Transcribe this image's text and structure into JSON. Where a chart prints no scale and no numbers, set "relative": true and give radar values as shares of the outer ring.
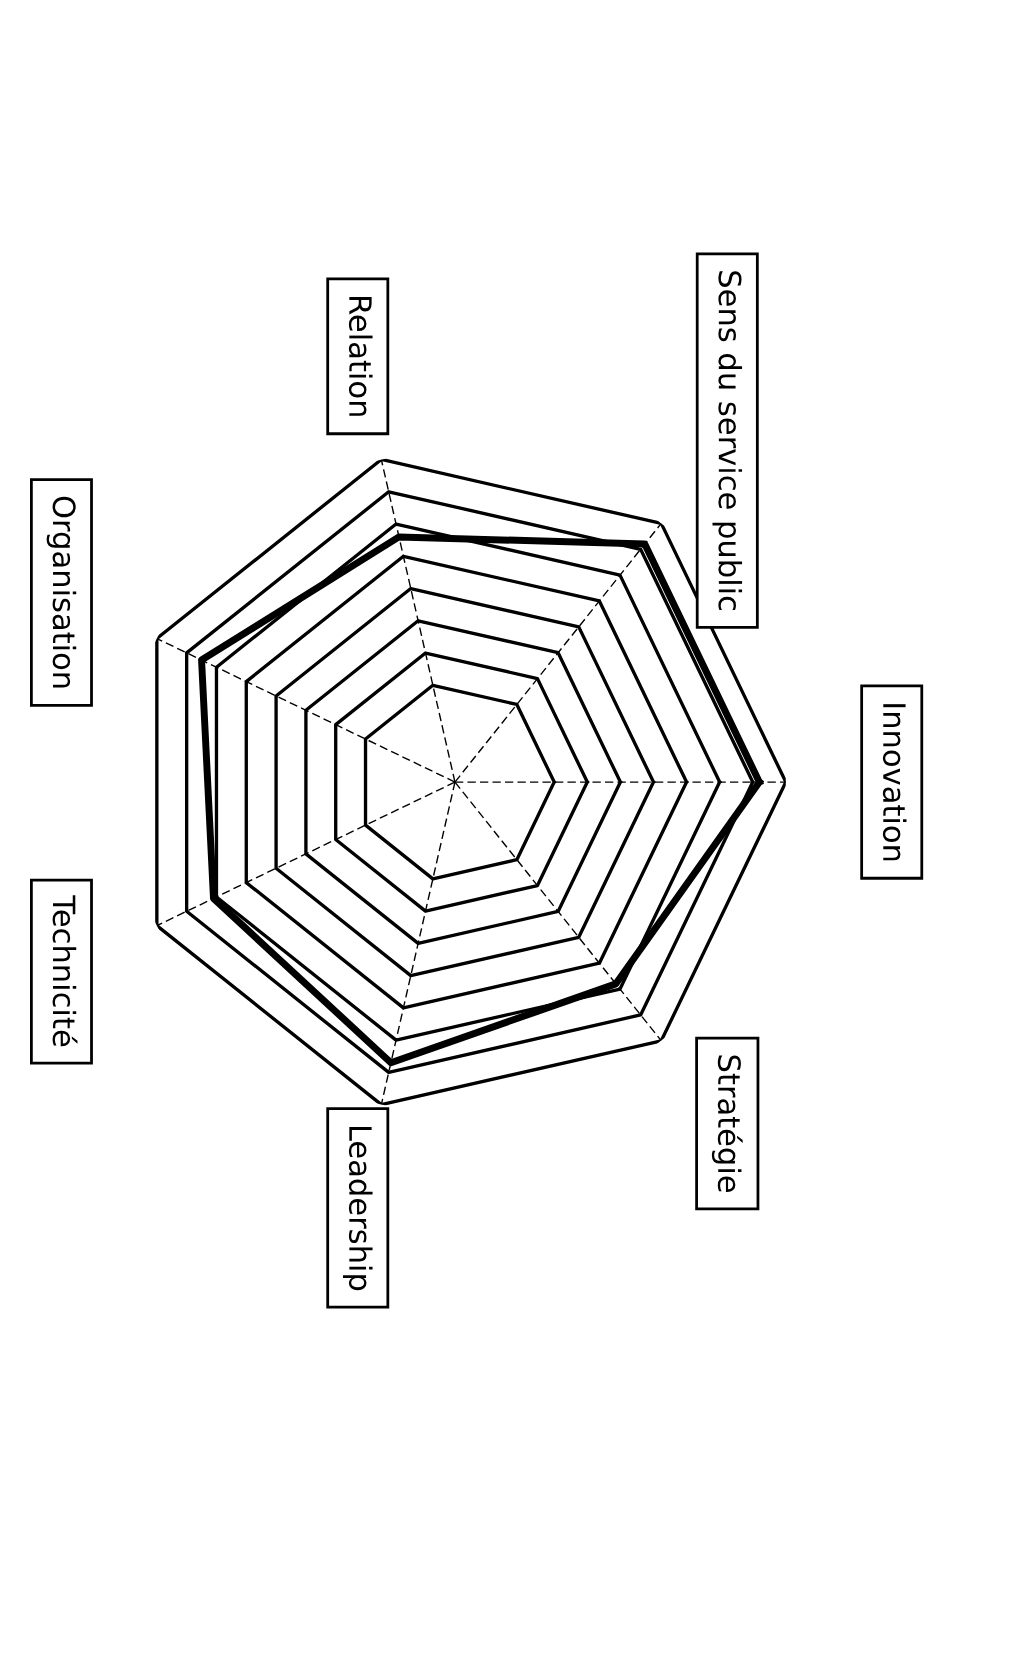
{
  "chart_data": {
    "type": "radar",
    "relative": true,
    "grid": true,
    "marker": "none",
    "line_style": "solid",
    "categories": [
      "Innovation",
      "Stratégie",
      "Leadership",
      "Technicité",
      "Organisation",
      "Relation",
      "Sens du service public"
    ],
    "series": [
      {
        "color": "#000000",
        "values": [
          0.92,
          0.78,
          0.87,
          0.81,
          0.85,
          0.76,
          0.92
        ]
      }
    ]
  }
}
